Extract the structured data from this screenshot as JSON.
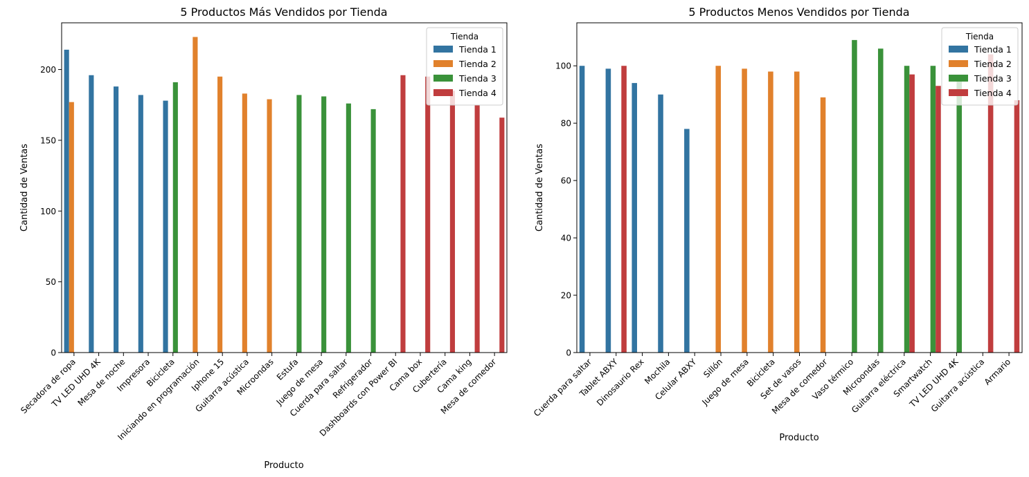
{
  "chart_data": [
    {
      "type": "bar",
      "title": "5 Productos Más Vendidos por Tienda",
      "xlabel": "Producto",
      "ylabel": "Cantidad de Ventas",
      "ylim": [
        0,
        233
      ],
      "yticks": [
        0,
        50,
        100,
        150,
        200
      ],
      "legend_title": "Tienda",
      "legend_position": "top-right",
      "categories": [
        "Secadora de ropa",
        "TV LED UHD 4K",
        "Mesa de noche",
        "Impresora",
        "Bicicleta",
        "Iniciando en programación",
        "Iphone 15",
        "Guitarra acústica",
        "Microondas",
        "Estufa",
        "Juego de mesa",
        "Cuerda para saltar",
        "Refrigerador",
        "Dashboards con Power BI",
        "Cama box",
        "Cubertería",
        "Cama king",
        "Mesa de comedor"
      ],
      "series": [
        {
          "name": "Tienda 1",
          "color": "#3274a1",
          "values": [
            214,
            196,
            188,
            182,
            178,
            null,
            null,
            null,
            null,
            null,
            null,
            null,
            null,
            null,
            null,
            null,
            null,
            null
          ]
        },
        {
          "name": "Tienda 2",
          "color": "#e1812c",
          "values": [
            177,
            null,
            null,
            null,
            null,
            223,
            195,
            183,
            179,
            null,
            null,
            null,
            null,
            null,
            null,
            null,
            null,
            null
          ]
        },
        {
          "name": "Tienda 3",
          "color": "#3a923a",
          "values": [
            null,
            null,
            null,
            null,
            191,
            null,
            null,
            null,
            null,
            182,
            181,
            176,
            172,
            null,
            null,
            null,
            null,
            null
          ]
        },
        {
          "name": "Tienda 4",
          "color": "#c03d3e",
          "values": [
            null,
            null,
            null,
            null,
            null,
            null,
            null,
            null,
            null,
            null,
            null,
            null,
            null,
            196,
            195,
            185,
            175,
            166
          ]
        }
      ]
    },
    {
      "type": "bar",
      "title": "5 Productos Menos Vendidos por Tienda",
      "xlabel": "Producto",
      "ylabel": "Cantidad de Ventas",
      "ylim": [
        0,
        115
      ],
      "yticks": [
        0,
        20,
        40,
        60,
        80,
        100
      ],
      "legend_title": "Tienda",
      "legend_position": "top-right",
      "categories": [
        "Cuerda para saltar",
        "Tablet ABXY",
        "Dinosaurio Rex",
        "Mochila",
        "Celular ABXY",
        "Sillón",
        "Juego de mesa",
        "Bicicleta",
        "Set de vasos",
        "Mesa de comedor",
        "Vaso térmico",
        "Microondas",
        "Guitarra eléctrica",
        "Smartwatch",
        "TV LED UHD 4K",
        "Guitarra acústica",
        "Armario"
      ],
      "series": [
        {
          "name": "Tienda 1",
          "color": "#3274a1",
          "values": [
            100,
            99,
            94,
            90,
            78,
            null,
            null,
            null,
            null,
            null,
            null,
            null,
            null,
            null,
            null,
            null,
            null
          ]
        },
        {
          "name": "Tienda 2",
          "color": "#e1812c",
          "values": [
            null,
            null,
            null,
            null,
            null,
            100,
            99,
            98,
            98,
            89,
            null,
            null,
            null,
            null,
            null,
            null,
            null
          ]
        },
        {
          "name": "Tienda 3",
          "color": "#3a923a",
          "values": [
            null,
            null,
            null,
            null,
            null,
            null,
            null,
            null,
            null,
            null,
            109,
            106,
            100,
            100,
            96,
            null,
            null
          ]
        },
        {
          "name": "Tienda 4",
          "color": "#c03d3e",
          "values": [
            null,
            100,
            null,
            null,
            null,
            null,
            null,
            null,
            null,
            null,
            null,
            null,
            97,
            93,
            null,
            104,
            88
          ]
        }
      ]
    }
  ]
}
